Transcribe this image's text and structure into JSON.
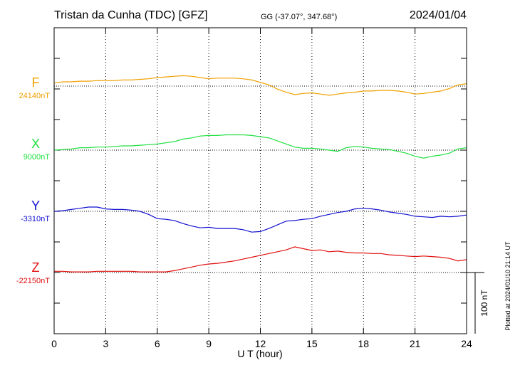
{
  "header": {
    "station": "Tristan da Cunha (TDC)  [GFZ]",
    "coords": "GG (-37.07°, 347.68°)",
    "date": "2024/01/04"
  },
  "plotted_note": "Plotted at 2024/01/10 21:14 UT",
  "scale_label": "100 nT",
  "chart_data": {
    "type": "line",
    "xlabel": "U T (hour)",
    "xlim": [
      0,
      24
    ],
    "xticks": [
      0,
      3,
      6,
      9,
      12,
      15,
      18,
      21,
      24
    ],
    "y_unit_per_panel_nT": 100,
    "grid": true,
    "series": [
      {
        "name": "F",
        "baseline_label": "24140nT",
        "baseline": 24140,
        "color": "#f0a000",
        "x": [
          0,
          0.5,
          1,
          1.5,
          2,
          2.5,
          3,
          3.5,
          4,
          4.5,
          5,
          5.5,
          6,
          6.5,
          7,
          7.5,
          8,
          8.5,
          9,
          9.5,
          10,
          10.5,
          11,
          11.5,
          12,
          12.5,
          13,
          13.5,
          14,
          14.5,
          15,
          15.5,
          16,
          16.5,
          17,
          17.5,
          18,
          18.5,
          19,
          19.5,
          20,
          20.5,
          21,
          21.5,
          22,
          22.5,
          23,
          23.5,
          24
        ],
        "y": [
          24145,
          24147,
          24147,
          24148,
          24148,
          24149,
          24149,
          24149,
          24150,
          24150,
          24151,
          24152,
          24154,
          24155,
          24156,
          24157,
          24156,
          24154,
          24152,
          24153,
          24153,
          24153,
          24152,
          24150,
          24146,
          24142,
          24135,
          24130,
          24126,
          24128,
          24129,
          24127,
          24125,
          24127,
          24129,
          24130,
          24132,
          24132,
          24133,
          24133,
          24132,
          24130,
          24127,
          24128,
          24130,
          24132,
          24136,
          24142,
          24144
        ]
      },
      {
        "name": "X",
        "baseline_label": "9000nT",
        "baseline": 9000,
        "color": "#20e040",
        "x": [
          0,
          0.5,
          1,
          1.5,
          2,
          2.5,
          3,
          3.5,
          4,
          4.5,
          5,
          5.5,
          6,
          6.5,
          7,
          7.5,
          8,
          8.5,
          9,
          9.5,
          10,
          10.5,
          11,
          11.5,
          12,
          12.5,
          13,
          13.5,
          14,
          14.5,
          15,
          15.5,
          16,
          16.5,
          17,
          17.5,
          18,
          18.5,
          19,
          19.5,
          20,
          20.5,
          21,
          21.5,
          22,
          22.5,
          23,
          23.5,
          24
        ],
        "y": [
          9000,
          9001,
          9002,
          9004,
          9004,
          9005,
          9005,
          9006,
          9007,
          9007,
          9008,
          9009,
          9010,
          9012,
          9014,
          9018,
          9020,
          9023,
          9024,
          9024,
          9025,
          9025,
          9025,
          9024,
          9022,
          9020,
          9015,
          9010,
          9005,
          9003,
          9003,
          9002,
          9000,
          8998,
          9004,
          9006,
          9005,
          9003,
          9002,
          9001,
          8998,
          8995,
          8990,
          8987,
          8990,
          8992,
          8995,
          9002,
          9004
        ]
      },
      {
        "name": "Y",
        "baseline_label": "-3310nT",
        "baseline": -3310,
        "color": "#1010d0",
        "x": [
          0,
          0.5,
          1,
          1.5,
          2,
          2.5,
          3,
          3.5,
          4,
          4.5,
          5,
          5.5,
          6,
          6.5,
          7,
          7.5,
          8,
          8.5,
          9,
          9.5,
          10,
          10.5,
          11,
          11.5,
          12,
          12.5,
          13,
          13.5,
          14,
          14.5,
          15,
          15.5,
          16,
          16.5,
          17,
          17.5,
          18,
          18.5,
          19,
          19.5,
          20,
          20.5,
          21,
          21.5,
          22,
          22.5,
          23,
          23.5,
          24
        ],
        "y": [
          -3310,
          -3309,
          -3307,
          -3305,
          -3303,
          -3303,
          -3306,
          -3307,
          -3307,
          -3308,
          -3310,
          -3315,
          -3322,
          -3323,
          -3325,
          -3330,
          -3334,
          -3337,
          -3336,
          -3338,
          -3338,
          -3338,
          -3340,
          -3344,
          -3343,
          -3338,
          -3332,
          -3326,
          -3325,
          -3323,
          -3322,
          -3318,
          -3315,
          -3312,
          -3310,
          -3306,
          -3305,
          -3306,
          -3308,
          -3311,
          -3313,
          -3315,
          -3318,
          -3319,
          -3320,
          -3318,
          -3319,
          -3318,
          -3316
        ]
      },
      {
        "name": "Z",
        "baseline_label": "-22150nT",
        "baseline": -22150,
        "color": "#e01010",
        "x": [
          0,
          0.5,
          1,
          1.5,
          2,
          2.5,
          3,
          3.5,
          4,
          4.5,
          5,
          5.5,
          6,
          6.5,
          7,
          7.5,
          8,
          8.5,
          9,
          9.5,
          10,
          10.5,
          11,
          11.5,
          12,
          12.5,
          13,
          13.5,
          14,
          14.5,
          15,
          15.5,
          16,
          16.5,
          17,
          17.5,
          18,
          18.5,
          19,
          19.5,
          20,
          20.5,
          21,
          21.5,
          22,
          22.5,
          23,
          23.5,
          24
        ],
        "y": [
          -22148,
          -22148,
          -22149,
          -22149,
          -22149,
          -22148,
          -22148,
          -22148,
          -22148,
          -22148,
          -22149,
          -22149,
          -22149,
          -22149,
          -22147,
          -22144,
          -22141,
          -22138,
          -22136,
          -22135,
          -22133,
          -22131,
          -22128,
          -22125,
          -22122,
          -22119,
          -22116,
          -22113,
          -22108,
          -22111,
          -22114,
          -22113,
          -22116,
          -22115,
          -22117,
          -22118,
          -22118,
          -22119,
          -22119,
          -22121,
          -22122,
          -22123,
          -22124,
          -22123,
          -22124,
          -22125,
          -22127,
          -22131,
          -22129
        ]
      }
    ]
  }
}
